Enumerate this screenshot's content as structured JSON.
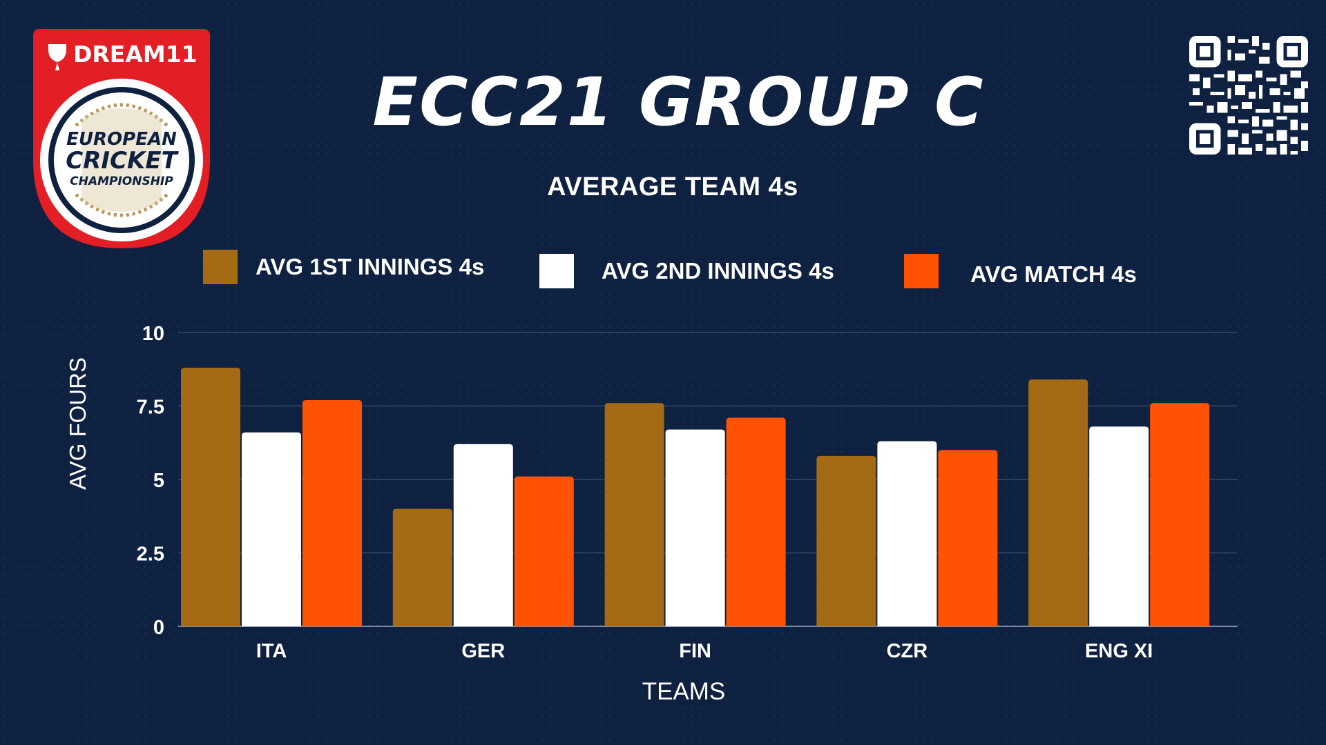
{
  "header": {
    "title": "ECC21 GROUP C",
    "logo_text": [
      "DREAM11",
      "EUROPEAN",
      "CRICKET",
      "CHAMPIONSHIP"
    ]
  },
  "colors": {
    "background": "#0f2140",
    "series_1": "#a56b14",
    "series_2": "#ffffff",
    "series_3": "#ff5203",
    "logo_red": "#e31e25",
    "logo_gold": "#b99457"
  },
  "icons": [
    "dream11-logo-icon",
    "european-cricket-championship-badge-icon",
    "qr-code-icon"
  ],
  "legend": [
    {
      "label": "AVG 1ST INNINGS 4s",
      "color": "#a56b14"
    },
    {
      "label": "AVG 2ND INNINGS 4s",
      "color": "#ffffff"
    },
    {
      "label": "AVG MATCH 4s",
      "color": "#ff5203"
    }
  ],
  "chart_data": {
    "type": "bar",
    "title": "AVERAGE TEAM 4s",
    "xlabel": "TEAMS",
    "ylabel": "AVG FOURS",
    "categories": [
      "ITA",
      "GER",
      "FIN",
      "CZR",
      "ENG XI"
    ],
    "series": [
      {
        "name": "AVG 1ST INNINGS 4s",
        "values": [
          8.8,
          4.0,
          7.6,
          5.8,
          8.4
        ],
        "color": "#a56b14"
      },
      {
        "name": "AVG 2ND INNINGS 4s",
        "values": [
          6.6,
          6.2,
          6.7,
          6.3,
          6.8
        ],
        "color": "#ffffff"
      },
      {
        "name": "AVG MATCH 4s",
        "values": [
          7.7,
          5.1,
          7.1,
          6.0,
          7.6
        ],
        "color": "#ff5203"
      }
    ],
    "ylim": [
      0,
      10
    ],
    "yticks": [
      "0",
      "2.5",
      "5",
      "7.5",
      "10"
    ],
    "ytick_values": [
      0,
      2.5,
      5,
      7.5,
      10
    ],
    "grid": true,
    "legend_position": "top"
  }
}
